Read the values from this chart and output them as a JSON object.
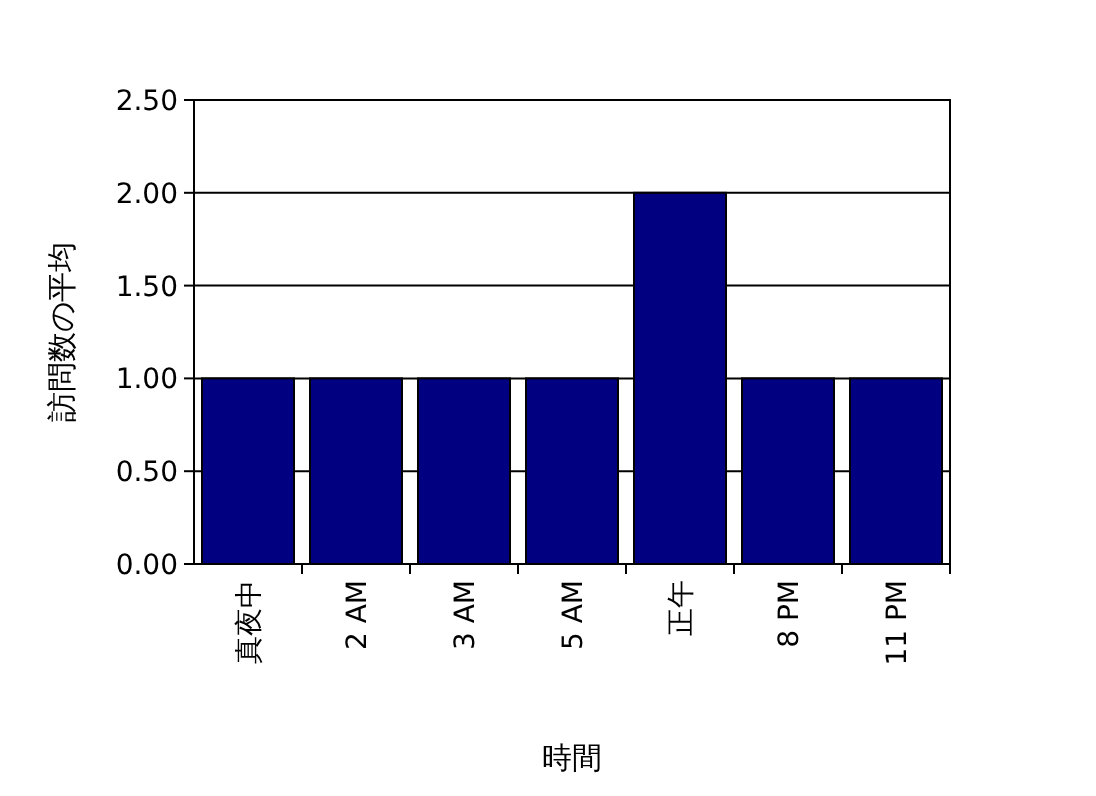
{
  "chart_data": {
    "type": "bar",
    "xlabel": "時間",
    "ylabel": "訪問数の平均",
    "categories": [
      "真夜中",
      "2 AM",
      "3 AM",
      "5 AM",
      "正午",
      "8 PM",
      "11 PM"
    ],
    "values": [
      1,
      1,
      1,
      1,
      2,
      1,
      1
    ],
    "color": "#000080",
    "ylim": [
      0,
      2.5
    ],
    "yticks": [
      {
        "value": 0,
        "label": "0.00"
      },
      {
        "value": 0.5,
        "label": "0.50"
      },
      {
        "value": 1,
        "label": "1.00"
      },
      {
        "value": 1.5,
        "label": "1.50"
      },
      {
        "value": 2,
        "label": "2.00"
      },
      {
        "value": 2.5,
        "label": "2.50"
      }
    ],
    "grid": "y"
  }
}
